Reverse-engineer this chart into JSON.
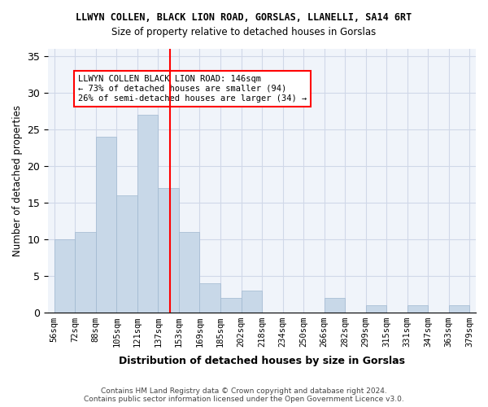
{
  "title": "LLWYN COLLEN, BLACK LION ROAD, GORSLAS, LLANELLI, SA14 6RT",
  "subtitle": "Size of property relative to detached houses in Gorslas",
  "xlabel": "Distribution of detached houses by size in Gorslas",
  "ylabel": "Number of detached properties",
  "bin_labels": [
    "56sqm",
    "72sqm",
    "88sqm",
    "105sqm",
    "121sqm",
    "137sqm",
    "153sqm",
    "169sqm",
    "185sqm",
    "202sqm",
    "218sqm",
    "234sqm",
    "250sqm",
    "266sqm",
    "282sqm",
    "299sqm",
    "315sqm",
    "331sqm",
    "347sqm",
    "363sqm",
    "379sqm"
  ],
  "values": [
    10,
    11,
    24,
    16,
    27,
    17,
    11,
    4,
    2,
    3,
    0,
    0,
    0,
    2,
    0,
    1,
    0,
    1,
    0,
    1
  ],
  "bar_color": "#c8d8e8",
  "bar_edge_color": "#a0b8d0",
  "bin_edges": [
    56,
    72,
    88,
    105,
    121,
    137,
    153,
    169,
    185,
    202,
    218,
    234,
    250,
    266,
    282,
    299,
    315,
    331,
    347,
    363,
    379
  ],
  "property_value": 146,
  "property_line_color": "red",
  "annotation_line1": "LLWYN COLLEN BLACK LION ROAD: 146sqm",
  "annotation_line2": "← 73% of detached houses are smaller (94)",
  "annotation_line3": "26% of semi-detached houses are larger (34) →",
  "annotation_box_color": "white",
  "annotation_box_edge_color": "red",
  "ylim": [
    0,
    36
  ],
  "yticks": [
    0,
    5,
    10,
    15,
    20,
    25,
    30,
    35
  ],
  "footer": "Contains HM Land Registry data © Crown copyright and database right 2024.\nContains public sector information licensed under the Open Government Licence v3.0.",
  "grid_color": "#d0d8e8",
  "background_color": "#f0f4fa"
}
